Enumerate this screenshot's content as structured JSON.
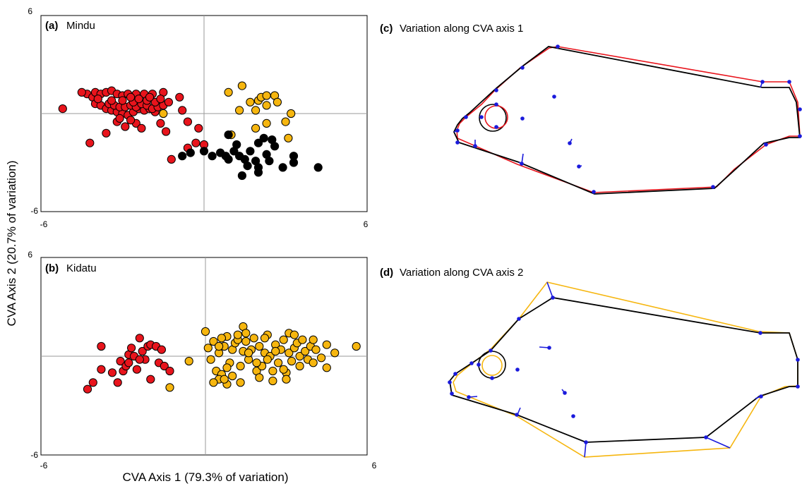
{
  "figure": {
    "y_axis_title": "CVA Axis 2 (20.7% of variation)",
    "x_axis_title": "CVA Axis 1 (79.3% of variation)"
  },
  "colors": {
    "red_group": "#e8141c",
    "yellow_group": "#f6b60f",
    "black_group": "#000000",
    "landmark": "#1a1adc",
    "mean_outline": "#000000"
  },
  "chart_data": [
    {
      "type": "scatter",
      "panel_letter": "(a)",
      "panel_name": "Mindu",
      "xlim": [
        -6,
        6
      ],
      "ylim": [
        -6,
        6
      ],
      "x_tick_labels": [
        "-6",
        "6"
      ],
      "y_tick_labels": [
        "6",
        "-6"
      ],
      "grid": false,
      "reference_lines": "x=0, y=0",
      "series": [
        {
          "color": "#e8141c",
          "points": [
            [
              -5.2,
              0.3
            ],
            [
              -4.3,
              1.2
            ],
            [
              -4.1,
              1.0
            ],
            [
              -4.0,
              1.3
            ],
            [
              -3.8,
              1.2
            ],
            [
              -3.6,
              1.3
            ],
            [
              -3.4,
              1.4
            ],
            [
              -3.2,
              1.2
            ],
            [
              -3.0,
              1.1
            ],
            [
              -2.8,
              1.2
            ],
            [
              -2.5,
              1.2
            ],
            [
              -2.2,
              1.2
            ],
            [
              -1.9,
              1.2
            ],
            [
              -1.5,
              1.3
            ],
            [
              -4.0,
              0.6
            ],
            [
              -3.8,
              0.5
            ],
            [
              -3.6,
              0.3
            ],
            [
              -3.4,
              0.2
            ],
            [
              -3.2,
              0.1
            ],
            [
              -3.0,
              0.0
            ],
            [
              -2.8,
              -0.1
            ],
            [
              -2.6,
              0.1
            ],
            [
              -2.4,
              0.3
            ],
            [
              -2.2,
              0.2
            ],
            [
              -2.0,
              0.3
            ],
            [
              -1.8,
              0.1
            ],
            [
              -3.5,
              0.6
            ],
            [
              -3.3,
              0.5
            ],
            [
              -3.1,
              0.4
            ],
            [
              -2.9,
              0.4
            ],
            [
              -2.7,
              0.5
            ],
            [
              -2.5,
              0.4
            ],
            [
              -2.3,
              0.6
            ],
            [
              -2.1,
              0.5
            ],
            [
              -1.9,
              0.3
            ],
            [
              -1.7,
              0.4
            ],
            [
              -3.6,
              -1.2
            ],
            [
              -4.2,
              -1.8
            ],
            [
              -3.2,
              -0.5
            ],
            [
              -2.9,
              -0.8
            ],
            [
              -2.5,
              -0.6
            ],
            [
              -2.3,
              -0.9
            ],
            [
              -1.6,
              -0.6
            ],
            [
              -1.4,
              -1.1
            ],
            [
              -0.8,
              0.2
            ],
            [
              -0.6,
              -0.5
            ],
            [
              -0.6,
              -2.1
            ],
            [
              -0.2,
              -0.9
            ],
            [
              -0.3,
              -1.8
            ],
            [
              -1.2,
              -2.8
            ],
            [
              -2.6,
              0.7
            ],
            [
              -2.4,
              0.9
            ],
            [
              -2.1,
              0.8
            ],
            [
              -1.8,
              0.7
            ],
            [
              -1.5,
              0.5
            ],
            [
              0.0,
              -1.9
            ],
            [
              -3.9,
              0.9
            ],
            [
              -3.4,
              0.8
            ],
            [
              -3.0,
              0.8
            ],
            [
              -2.7,
              1.0
            ],
            [
              -2.0,
              1.0
            ],
            [
              -1.6,
              0.9
            ],
            [
              -1.3,
              0.7
            ],
            [
              -0.9,
              1.0
            ],
            [
              -4.5,
              1.3
            ],
            [
              -3.1,
              -0.3
            ],
            [
              -2.7,
              -0.4
            ]
          ]
        },
        {
          "color": "#f6b60f",
          "points": [
            [
              0.9,
              1.3
            ],
            [
              1.4,
              1.7
            ],
            [
              1.3,
              0.2
            ],
            [
              1.7,
              0.7
            ],
            [
              1.9,
              0.2
            ],
            [
              2.0,
              0.8
            ],
            [
              2.1,
              1.0
            ],
            [
              2.3,
              1.1
            ],
            [
              2.6,
              1.1
            ],
            [
              2.3,
              0.5
            ],
            [
              2.7,
              0.7
            ],
            [
              1.9,
              -0.9
            ],
            [
              2.3,
              -0.6
            ],
            [
              3.0,
              -0.5
            ],
            [
              3.2,
              0.0
            ],
            [
              3.1,
              -1.5
            ],
            [
              1.0,
              -1.3
            ],
            [
              -1.5,
              0.0
            ]
          ]
        },
        {
          "color": "#000000",
          "points": [
            [
              -0.8,
              -2.6
            ],
            [
              -0.5,
              -2.4
            ],
            [
              0.0,
              -2.3
            ],
            [
              0.3,
              -2.6
            ],
            [
              0.6,
              -2.4
            ],
            [
              0.8,
              -2.6
            ],
            [
              0.9,
              -1.3
            ],
            [
              1.1,
              -2.3
            ],
            [
              1.2,
              -1.9
            ],
            [
              1.5,
              -2.8
            ],
            [
              1.7,
              -2.3
            ],
            [
              1.9,
              -2.9
            ],
            [
              2.0,
              -1.8
            ],
            [
              2.2,
              -1.5
            ],
            [
              2.3,
              -2.5
            ],
            [
              2.5,
              -1.6
            ],
            [
              2.4,
              -2.9
            ],
            [
              2.6,
              -2.0
            ],
            [
              2.9,
              -3.3
            ],
            [
              3.3,
              -2.6
            ],
            [
              3.3,
              -3.0
            ],
            [
              4.2,
              -3.3
            ],
            [
              1.4,
              -3.8
            ],
            [
              2.0,
              -3.6
            ],
            [
              2.0,
              -3.3
            ],
            [
              1.6,
              -3.2
            ],
            [
              0.9,
              -2.8
            ],
            [
              1.3,
              -2.6
            ]
          ]
        }
      ]
    },
    {
      "type": "scatter",
      "panel_letter": "(b)",
      "panel_name": "Kidatu",
      "xlim": [
        -6,
        6
      ],
      "ylim": [
        -6,
        6
      ],
      "x_tick_labels": [
        "-6",
        "6"
      ],
      "y_tick_labels": [
        "6",
        "-6"
      ],
      "grid": false,
      "reference_lines": "x=0, y=0",
      "series": [
        {
          "color": "#e8141c",
          "points": [
            [
              -4.3,
              -2.0
            ],
            [
              -4.1,
              -1.6
            ],
            [
              -3.8,
              0.6
            ],
            [
              -3.8,
              -0.8
            ],
            [
              -3.2,
              -1.6
            ],
            [
              -3.1,
              -0.3
            ],
            [
              -3.0,
              -0.9
            ],
            [
              -2.9,
              -0.6
            ],
            [
              -2.8,
              0.1
            ],
            [
              -2.7,
              0.5
            ],
            [
              -2.6,
              0.0
            ],
            [
              -2.5,
              -0.8
            ],
            [
              -2.4,
              1.1
            ],
            [
              -2.3,
              0.3
            ],
            [
              -2.2,
              -0.2
            ],
            [
              -2.1,
              0.6
            ],
            [
              -2.0,
              0.7
            ],
            [
              -2.0,
              -1.4
            ],
            [
              -1.8,
              0.6
            ],
            [
              -1.7,
              -0.4
            ],
            [
              -1.6,
              0.4
            ],
            [
              -1.5,
              -0.6
            ],
            [
              -1.3,
              -0.9
            ],
            [
              -2.8,
              -0.4
            ],
            [
              -3.4,
              -1.0
            ],
            [
              -2.4,
              -0.2
            ]
          ]
        },
        {
          "color": "#f6b60f",
          "points": [
            [
              -1.3,
              -1.9
            ],
            [
              -0.6,
              -0.3
            ],
            [
              0.0,
              1.5
            ],
            [
              0.1,
              0.5
            ],
            [
              0.2,
              -0.2
            ],
            [
              0.3,
              0.9
            ],
            [
              0.4,
              -0.9
            ],
            [
              0.5,
              0.2
            ],
            [
              0.6,
              -1.1
            ],
            [
              0.7,
              0.6
            ],
            [
              0.8,
              1.2
            ],
            [
              0.9,
              -0.4
            ],
            [
              1.0,
              0.4
            ],
            [
              1.1,
              0.8
            ],
            [
              1.2,
              1.0
            ],
            [
              1.3,
              -0.6
            ],
            [
              1.4,
              0.3
            ],
            [
              1.5,
              0.9
            ],
            [
              1.6,
              -0.2
            ],
            [
              1.7,
              0.4
            ],
            [
              1.8,
              1.1
            ],
            [
              1.9,
              -0.9
            ],
            [
              2.0,
              0.6
            ],
            [
              2.1,
              -0.6
            ],
            [
              2.2,
              0.2
            ],
            [
              2.3,
              1.3
            ],
            [
              2.4,
              0.0
            ],
            [
              2.5,
              -0.9
            ],
            [
              2.6,
              0.7
            ],
            [
              2.7,
              -0.4
            ],
            [
              2.8,
              0.4
            ],
            [
              2.9,
              1.0
            ],
            [
              3.0,
              -1.0
            ],
            [
              3.1,
              0.2
            ],
            [
              3.2,
              -0.3
            ],
            [
              3.3,
              0.5
            ],
            [
              3.4,
              0.8
            ],
            [
              3.5,
              0.0
            ],
            [
              3.6,
              1.0
            ],
            [
              3.7,
              0.3
            ],
            [
              3.8,
              -0.2
            ],
            [
              3.9,
              0.6
            ],
            [
              4.0,
              1.0
            ],
            [
              4.1,
              0.4
            ],
            [
              4.3,
              -0.1
            ],
            [
              4.5,
              0.7
            ],
            [
              4.8,
              0.2
            ],
            [
              5.6,
              0.6
            ],
            [
              1.4,
              1.8
            ],
            [
              1.2,
              1.3
            ],
            [
              0.6,
              1.1
            ],
            [
              1.6,
              0.2
            ],
            [
              0.8,
              -0.7
            ],
            [
              1.0,
              -1.2
            ],
            [
              0.5,
              -1.4
            ],
            [
              0.3,
              -1.6
            ],
            [
              0.8,
              -1.7
            ],
            [
              1.9,
              -0.4
            ],
            [
              2.3,
              -0.2
            ],
            [
              2.5,
              -1.5
            ],
            [
              2.9,
              -0.8
            ],
            [
              3.0,
              -1.4
            ],
            [
              3.1,
              1.4
            ],
            [
              3.5,
              -0.6
            ],
            [
              4.0,
              -0.4
            ],
            [
              4.5,
              -0.7
            ],
            [
              0.7,
              -1.4
            ],
            [
              2.6,
              0.3
            ],
            [
              1.3,
              -1.6
            ],
            [
              2.0,
              -1.3
            ],
            [
              0.5,
              0.6
            ],
            [
              1.5,
              1.4
            ],
            [
              2.2,
              1.1
            ],
            [
              3.3,
              1.3
            ]
          ]
        }
      ]
    }
  ],
  "panels": {
    "c": {
      "panel_letter": "(c)",
      "title": "Variation along CVA axis 1",
      "extreme_color": "#e8141c"
    },
    "d": {
      "panel_letter": "(d)",
      "title": "Variation along CVA axis 2",
      "extreme_color": "#f6b60f"
    }
  }
}
